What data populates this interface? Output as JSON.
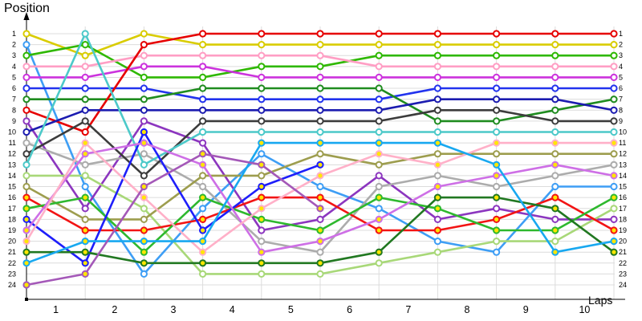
{
  "chart_data": {
    "type": "line",
    "variant": "race-position-bump-chart",
    "title": "Position",
    "xlabel": "Laps",
    "grid": true,
    "legend": "none",
    "x_ticks": [
      1,
      2,
      3,
      4,
      5,
      6,
      7,
      8,
      9,
      10
    ],
    "x_values": [
      0.5,
      1.5,
      2.5,
      3.5,
      4.5,
      5.5,
      6.5,
      7.5,
      8.5,
      9.5,
      10.5
    ],
    "y_ticks": [
      1,
      2,
      3,
      4,
      5,
      6,
      7,
      8,
      9,
      10,
      11,
      12,
      13,
      14,
      15,
      16,
      17,
      18,
      19,
      20,
      21,
      22,
      23,
      24
    ],
    "ylim": [
      1,
      24
    ],
    "y_axis_inverted": true,
    "style": {
      "grid_color": "#dcdcdc",
      "axis_color": "#000000",
      "label_color": "#000000",
      "marker_white_fill": "#ffffff",
      "marker_yellow_fill": "#ffe600"
    },
    "series": [
      {
        "name": "yellow",
        "color": "#d9cc00",
        "marker_fill": "white",
        "positions": [
          1,
          3,
          1,
          2,
          2,
          2,
          2,
          2,
          2,
          2,
          2
        ]
      },
      {
        "name": "dodger-blue",
        "color": "#3e9ef5",
        "marker_fill": "white",
        "positions": [
          2,
          15,
          23,
          17,
          12,
          15,
          17,
          20,
          21,
          15,
          15
        ]
      },
      {
        "name": "green",
        "color": "#2eb800",
        "marker_fill": "white",
        "positions": [
          3,
          2,
          5,
          5,
          4,
          4,
          3,
          3,
          3,
          3,
          3
        ]
      },
      {
        "name": "pink",
        "color": "#ff9ec4",
        "marker_fill": "white",
        "positions": [
          4,
          4,
          3,
          3,
          3,
          3,
          4,
          4,
          4,
          4,
          4
        ]
      },
      {
        "name": "magenta",
        "color": "#cc33dd",
        "marker_fill": "white",
        "positions": [
          5,
          5,
          4,
          4,
          5,
          5,
          5,
          5,
          5,
          5,
          5
        ]
      },
      {
        "name": "blue",
        "color": "#2233ee",
        "marker_fill": "white",
        "positions": [
          6,
          6,
          6,
          7,
          7,
          7,
          7,
          6,
          6,
          6,
          6
        ]
      },
      {
        "name": "dark-green",
        "color": "#1f8c1f",
        "marker_fill": "white",
        "positions": [
          7,
          7,
          7,
          6,
          6,
          6,
          6,
          9,
          9,
          8,
          7
        ]
      },
      {
        "name": "red",
        "color": "#e60000",
        "marker_fill": "white",
        "positions": [
          8,
          10,
          2,
          1,
          1,
          1,
          1,
          1,
          1,
          1,
          1
        ]
      },
      {
        "name": "dark-orchid",
        "color": "#8c36bf",
        "marker_fill": "white",
        "positions": [
          9,
          17,
          9,
          11,
          19,
          18,
          14,
          18,
          17,
          18,
          18
        ]
      },
      {
        "name": "navy",
        "color": "#1c1cb0",
        "marker_fill": "white",
        "positions": [
          10,
          8,
          8,
          8,
          8,
          8,
          8,
          7,
          7,
          7,
          8
        ]
      },
      {
        "name": "silver",
        "color": "#acacac",
        "marker_fill": "white",
        "positions": [
          11,
          13,
          12,
          15,
          20,
          21,
          15,
          14,
          15,
          14,
          13
        ]
      },
      {
        "name": "dark-gray",
        "color": "#3c3c3c",
        "marker_fill": "white",
        "positions": [
          12,
          9,
          14,
          9,
          9,
          9,
          9,
          8,
          8,
          9,
          9
        ]
      },
      {
        "name": "turquoise",
        "color": "#4cc9c9",
        "marker_fill": "white",
        "positions": [
          13,
          1,
          13,
          10,
          10,
          10,
          10,
          10,
          10,
          10,
          10
        ]
      },
      {
        "name": "pale-green",
        "color": "#a8d878",
        "marker_fill": "white",
        "positions": [
          14,
          14,
          17,
          23,
          23,
          23,
          22,
          21,
          20,
          20,
          17
        ]
      },
      {
        "name": "olive",
        "color": "#9d9d4e",
        "marker_fill": "white",
        "positions": [
          15,
          18,
          18,
          14,
          14,
          12,
          13,
          12,
          12,
          12,
          12
        ]
      },
      {
        "name": "red-2",
        "color": "#f21414",
        "marker_fill": "yellow",
        "positions": [
          16,
          19,
          19,
          18,
          16,
          16,
          19,
          19,
          18,
          16,
          19
        ]
      },
      {
        "name": "green-2",
        "color": "#2eb82e",
        "marker_fill": "yellow",
        "positions": [
          17,
          16,
          21,
          16,
          18,
          19,
          16,
          17,
          19,
          19,
          16
        ]
      },
      {
        "name": "royal-blue",
        "color": "#1e1efa",
        "marker_fill": "yellow",
        "positions": [
          18,
          22,
          10,
          19,
          15,
          13,
          null,
          null,
          null,
          null,
          null
        ]
      },
      {
        "name": "violet",
        "color": "#ce6fe6",
        "marker_fill": "yellow",
        "positions": [
          19,
          12,
          11,
          13,
          21,
          20,
          18,
          15,
          14,
          13,
          14
        ]
      },
      {
        "name": "light-pink",
        "color": "#ffb0c8",
        "marker_fill": "yellow",
        "positions": [
          20,
          11,
          16,
          21,
          17,
          14,
          12,
          13,
          11,
          11,
          11
        ]
      },
      {
        "name": "dark-green-2",
        "color": "#217821",
        "marker_fill": "yellow",
        "positions": [
          21,
          21,
          22,
          22,
          22,
          22,
          21,
          16,
          16,
          17,
          21
        ]
      },
      {
        "name": "deep-sky",
        "color": "#18a8f0",
        "marker_fill": "yellow",
        "positions": [
          22,
          20,
          20,
          20,
          11,
          11,
          11,
          11,
          13,
          21,
          20
        ]
      },
      {
        "name": "med-purple",
        "color": "#a458b8",
        "marker_fill": "yellow",
        "positions": [
          24,
          23,
          15,
          12,
          13,
          17,
          null,
          null,
          null,
          null,
          null
        ]
      }
    ]
  }
}
